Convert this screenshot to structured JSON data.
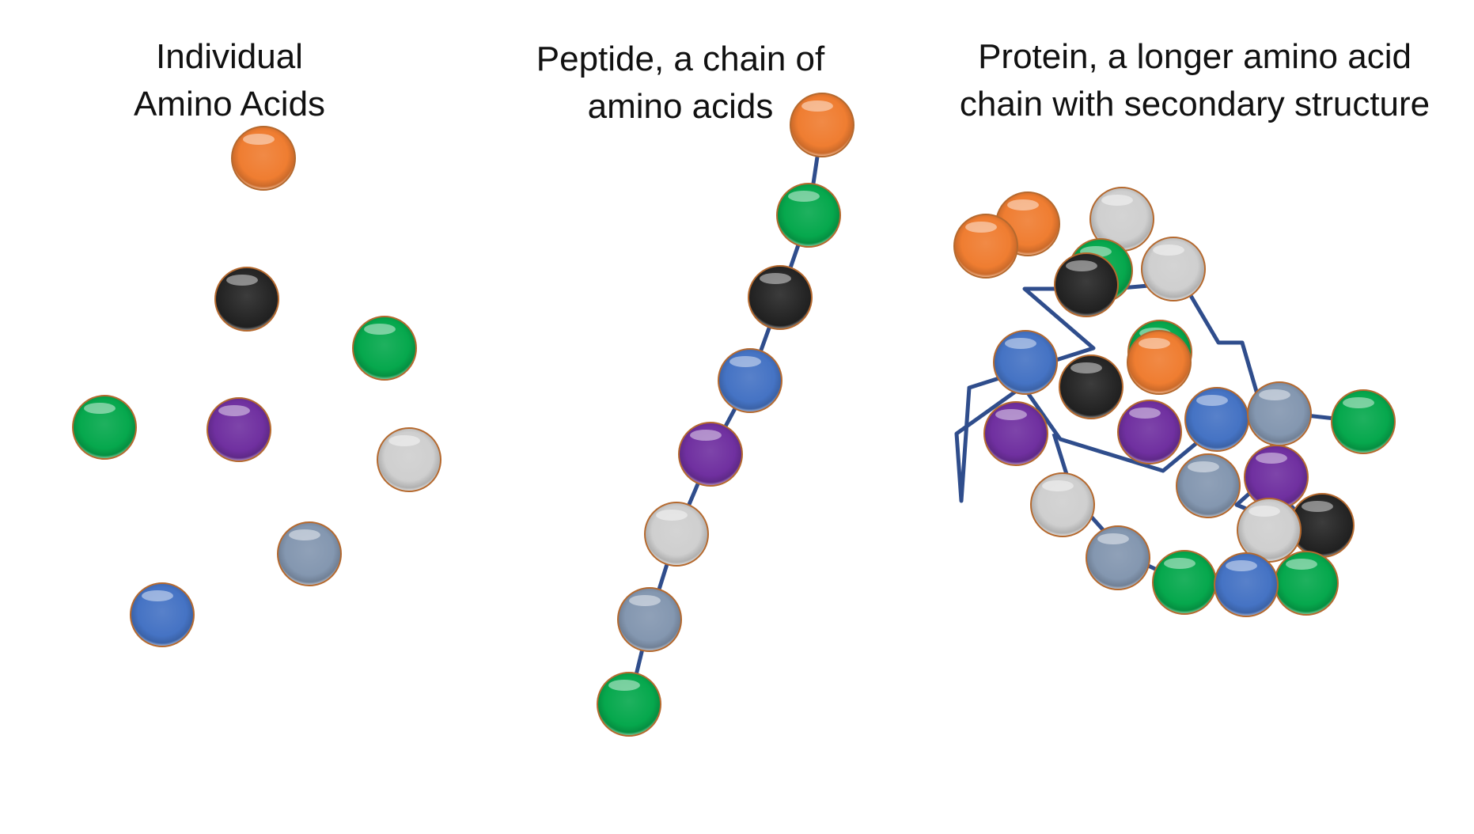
{
  "panels": {
    "individual": {
      "line1": "Individual",
      "line2": "Amino Acids"
    },
    "peptide": {
      "line1": "Peptide, a chain of",
      "line2": "amino acids"
    },
    "protein": {
      "line1": "Protein, a longer amino acid",
      "line2": "chain with secondary structure"
    }
  },
  "colors": {
    "orange": "#ef7d31",
    "green": "#06a84d",
    "black": "#262626",
    "blue": "#4573c4",
    "purple": "#7030a0",
    "lightgray": "#cfcfcf",
    "slate": "#8497b0",
    "bond": "#2f4d8c",
    "rim": "#b5692e"
  }
}
